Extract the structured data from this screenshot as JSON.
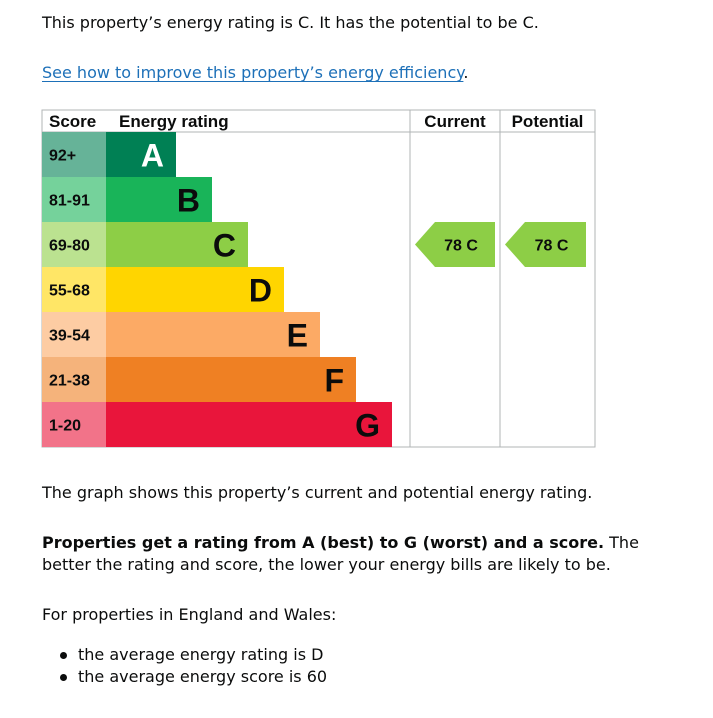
{
  "intro": "This property’s energy rating is C. It has the potential to be C.",
  "improve_link": "See how to improve this property’s energy efficiency",
  "improve_link_suffix": ".",
  "chart_data": {
    "type": "table",
    "headers": {
      "score": "Score",
      "rating": "Energy rating",
      "current": "Current",
      "potential": "Potential"
    },
    "bands": [
      {
        "range": "92+",
        "letter": "A",
        "color": "#008054",
        "score_bg": "#66b398",
        "text_color": "#ffffff"
      },
      {
        "range": "81-91",
        "letter": "B",
        "color": "#19b459",
        "score_bg": "#75d29b",
        "text_color": "#0b0c0c"
      },
      {
        "range": "69-80",
        "letter": "C",
        "color": "#8dce46",
        "score_bg": "#bbe290",
        "text_color": "#0b0c0c"
      },
      {
        "range": "55-68",
        "letter": "D",
        "color": "#ffd500",
        "score_bg": "#ffe666",
        "text_color": "#0b0c0c"
      },
      {
        "range": "39-54",
        "letter": "E",
        "color": "#fcaa65",
        "score_bg": "#fdcca3",
        "text_color": "#0b0c0c"
      },
      {
        "range": "21-38",
        "letter": "F",
        "color": "#ef8023",
        "score_bg": "#f5b37b",
        "text_color": "#0b0c0c"
      },
      {
        "range": "1-20",
        "letter": "G",
        "color": "#e9153b",
        "score_bg": "#f27389",
        "text_color": "#0b0c0c"
      }
    ],
    "current": {
      "score": 78,
      "letter": "C",
      "label": "78 C",
      "band_index": 2,
      "color": "#8dce46"
    },
    "potential": {
      "score": 78,
      "letter": "C",
      "label": "78 C",
      "band_index": 2,
      "color": "#8dce46"
    }
  },
  "graph_note": "The graph shows this property’s current and potential energy rating.",
  "ratings_bold": "Properties get a rating from A (best) to G (worst) and a score.",
  "ratings_rest": " The better the rating and score, the lower your energy bills are likely to be.",
  "region_intro": "For properties in England and Wales:",
  "averages": [
    "the average energy rating is D",
    "the average energy score is 60"
  ]
}
